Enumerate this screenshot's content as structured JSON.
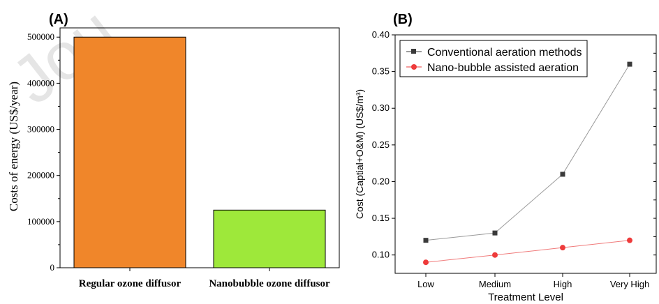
{
  "panel_a": {
    "label": "(A)",
    "watermark": "Jou"
  },
  "panel_b": {
    "label": "(B)"
  },
  "chart_data": [
    {
      "type": "bar",
      "title": "",
      "categories": [
        "Regular ozone diffusor",
        "Nanobubble ozone diffusor"
      ],
      "values": [
        500000,
        125000
      ],
      "colors": [
        "#f0862a",
        "#9ee83a"
      ],
      "xlabel": "",
      "ylabel": "Costs of energy (US$/year)",
      "ylim": [
        0,
        520000
      ],
      "yticks": [
        0,
        100000,
        200000,
        300000,
        400000,
        500000
      ],
      "grid": false,
      "legend": "none"
    },
    {
      "type": "line",
      "title": "",
      "categories": [
        "Low",
        "Medium",
        "High",
        "Very High"
      ],
      "series": [
        {
          "name": "Conventional aeration methods",
          "values": [
            0.12,
            0.13,
            0.21,
            0.36
          ],
          "color": "#3a3a3a",
          "marker": "square"
        },
        {
          "name": "Nano-bubble assisted aeration",
          "values": [
            0.09,
            0.1,
            0.11,
            0.12
          ],
          "color": "#ee3b3b",
          "marker": "circle"
        }
      ],
      "xlabel": "Treatment Level",
      "ylabel": "Cost (Captial+O&M) (US$/m³)",
      "ylim": [
        0.075,
        0.4
      ],
      "yticks": [
        "0.10",
        "0.15",
        "0.20",
        "0.25",
        "0.30",
        "0.35",
        "0.40"
      ],
      "grid": false,
      "legend": "top-left"
    }
  ]
}
